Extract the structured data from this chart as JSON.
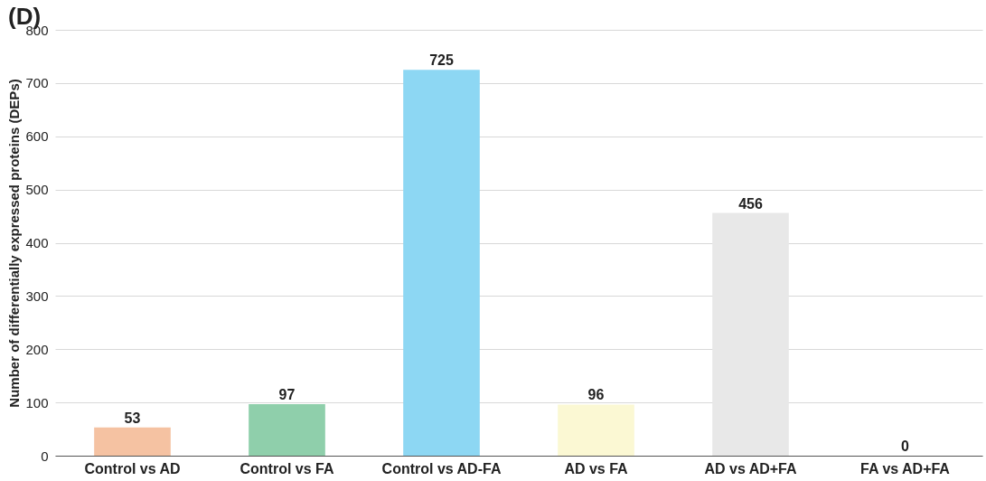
{
  "chart_data": {
    "type": "bar",
    "title": "(D)",
    "ylabel": "Number of differentially expressed proteins (DEPs)",
    "categories": [
      "Control vs AD",
      "Control vs FA",
      "Control vs AD-FA",
      "AD vs FA",
      "AD vs AD+FA",
      "FA vs AD+FA"
    ],
    "values": [
      53,
      97,
      725,
      96,
      456,
      0
    ],
    "colors": [
      "#f5c2a2",
      "#8fcfab",
      "#8dd7f3",
      "#fbf8d3",
      "#e8e8e8",
      "#e8e8e8"
    ],
    "ylim": [
      0,
      800
    ],
    "yticks": [
      0,
      100,
      200,
      300,
      400,
      500,
      600,
      700,
      800
    ],
    "grid": "y",
    "data_labels": true
  }
}
